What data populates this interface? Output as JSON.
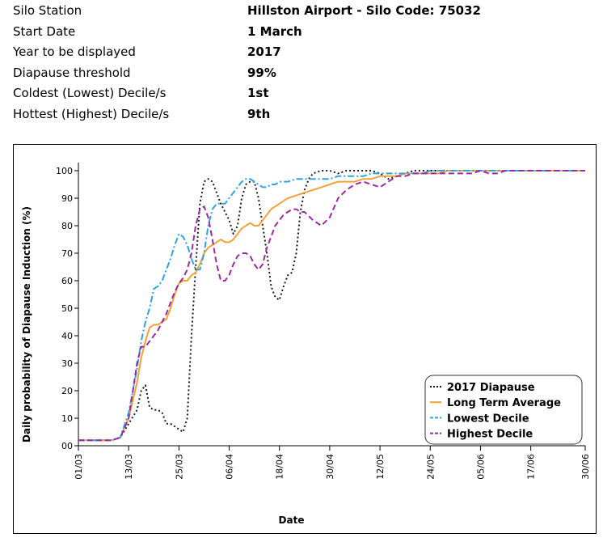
{
  "info": [
    {
      "label": "Silo Station",
      "value": "Hillston Airport - Silo Code: 75032"
    },
    {
      "label": "Start Date",
      "value": "1 March"
    },
    {
      "label": "Year to be displayed",
      "value": "2017"
    },
    {
      "label": "Diapause threshold",
      "value": "99%"
    },
    {
      "label": "Coldest (Lowest) Decile/s",
      "value": "1st"
    },
    {
      "label": "Hottest (Highest) Decile/s",
      "value": "9th"
    }
  ],
  "chart_data": {
    "type": "line",
    "xlabel": "Date",
    "ylabel": "Daily probability of Diapause Induction (%)",
    "x_tick_labels": [
      "01/03",
      "13/03",
      "25/03",
      "06/04",
      "18/04",
      "30/04",
      "12/05",
      "24/05",
      "05/06",
      "17/06",
      "30/06"
    ],
    "x_tick_days": [
      0,
      12,
      24,
      36,
      48,
      60,
      72,
      84,
      96,
      108,
      121
    ],
    "xlim": [
      0,
      121
    ],
    "ylim": [
      0,
      100
    ],
    "y_ticks": [
      0,
      10,
      20,
      30,
      40,
      50,
      60,
      70,
      80,
      90,
      100
    ],
    "y_tick_labels": [
      "00",
      "10",
      "20",
      "30",
      "40",
      "50",
      "60",
      "70",
      "80",
      "90",
      "100"
    ],
    "grid": false,
    "legend_position": "bottom-right",
    "series": [
      {
        "name": "2017 Diapause",
        "color": "#1a1a1a",
        "style": "dotted",
        "x": [
          0,
          8,
          10,
          12,
          14,
          15,
          16,
          17,
          18,
          19,
          20,
          21,
          22,
          24,
          25,
          26,
          27,
          28,
          29,
          30,
          31,
          32,
          34,
          36,
          37,
          38,
          39,
          40,
          41,
          42,
          43,
          44,
          45,
          46,
          47,
          48,
          49,
          50,
          51,
          52,
          53,
          54,
          55,
          56,
          58,
          60,
          62,
          64,
          66,
          68,
          70,
          72,
          74,
          76,
          78,
          80,
          82,
          84,
          86,
          88,
          90,
          92,
          94,
          96,
          98,
          100,
          102,
          104,
          106,
          108,
          110,
          112,
          114,
          116,
          118,
          121
        ],
        "y": [
          2,
          2,
          3,
          8,
          13,
          20,
          22,
          14,
          13,
          13,
          12,
          8,
          8,
          6,
          5,
          10,
          40,
          65,
          88,
          96,
          97,
          96,
          88,
          82,
          77,
          80,
          90,
          95,
          96,
          96,
          90,
          80,
          70,
          58,
          54,
          53,
          58,
          62,
          63,
          70,
          85,
          93,
          97,
          99,
          100,
          100,
          99,
          100,
          100,
          100,
          100,
          99,
          97,
          98,
          99,
          100,
          100,
          100,
          100,
          100,
          100,
          100,
          100,
          100,
          100,
          100,
          100,
          100,
          100,
          100,
          100,
          100,
          100,
          100,
          100,
          100
        ]
      },
      {
        "name": "Long Term Average",
        "color": "#f4a13a",
        "style": "solid",
        "x": [
          0,
          8,
          10,
          12,
          14,
          15,
          16,
          17,
          18,
          19,
          20,
          21,
          22,
          23,
          24,
          25,
          26,
          27,
          28,
          29,
          30,
          31,
          32,
          33,
          34,
          35,
          36,
          37,
          38,
          39,
          40,
          41,
          42,
          43,
          44,
          45,
          46,
          47,
          48,
          50,
          52,
          54,
          56,
          58,
          60,
          62,
          64,
          66,
          68,
          70,
          72,
          74,
          76,
          78,
          80,
          82,
          84,
          86,
          88,
          90,
          92,
          94,
          96,
          98,
          100,
          102,
          104,
          106,
          108,
          110,
          112,
          114,
          116,
          118,
          121
        ],
        "y": [
          2,
          2,
          3,
          10,
          23,
          32,
          38,
          43,
          44,
          44,
          45,
          46,
          50,
          55,
          59,
          60,
          60,
          62,
          63,
          66,
          70,
          72,
          73,
          74,
          75,
          74,
          74,
          75,
          77,
          79,
          80,
          81,
          80,
          80,
          82,
          84,
          86,
          87,
          88,
          90,
          91,
          92,
          93,
          94,
          95,
          96,
          96,
          96,
          97,
          97,
          98,
          98,
          98,
          99,
          99,
          99,
          99,
          99,
          100,
          100,
          100,
          100,
          100,
          100,
          100,
          100,
          100,
          100,
          100,
          100,
          100,
          100,
          100,
          100,
          100
        ]
      },
      {
        "name": "Lowest Decile",
        "color": "#2ea3e0",
        "style": "dashdot",
        "x": [
          0,
          8,
          10,
          12,
          13,
          14,
          15,
          16,
          17,
          18,
          19,
          20,
          21,
          22,
          23,
          24,
          25,
          26,
          27,
          28,
          29,
          30,
          31,
          32,
          33,
          34,
          35,
          36,
          37,
          38,
          39,
          40,
          41,
          42,
          43,
          44,
          45,
          46,
          47,
          48,
          50,
          52,
          54,
          56,
          58,
          60,
          62,
          64,
          66,
          68,
          70,
          72,
          74,
          76,
          78,
          80,
          82,
          84,
          86,
          88,
          90,
          92,
          94,
          96,
          98,
          100,
          102,
          104,
          106,
          108,
          110,
          112,
          114,
          116,
          118,
          121
        ],
        "y": [
          2,
          2,
          3,
          12,
          20,
          28,
          38,
          45,
          50,
          57,
          58,
          60,
          64,
          68,
          73,
          77,
          76,
          73,
          68,
          64,
          64,
          70,
          80,
          86,
          88,
          88,
          88,
          90,
          92,
          94,
          96,
          97,
          97,
          96,
          95,
          94,
          94,
          95,
          95,
          96,
          96,
          97,
          97,
          97,
          97,
          97,
          98,
          98,
          98,
          98,
          99,
          99,
          99,
          99,
          99,
          99,
          99,
          100,
          100,
          100,
          100,
          100,
          100,
          100,
          100,
          100,
          100,
          100,
          100,
          100,
          100,
          100,
          100,
          100,
          100,
          100
        ]
      },
      {
        "name": "Highest Decile",
        "color": "#9a2aa4",
        "style": "dashed",
        "x": [
          0,
          8,
          10,
          12,
          13,
          14,
          15,
          16,
          17,
          18,
          19,
          20,
          21,
          22,
          23,
          24,
          25,
          26,
          27,
          28,
          29,
          30,
          31,
          32,
          33,
          34,
          35,
          36,
          37,
          38,
          39,
          40,
          41,
          42,
          43,
          44,
          45,
          46,
          47,
          48,
          49,
          50,
          51,
          52,
          53,
          54,
          56,
          58,
          60,
          62,
          64,
          66,
          68,
          70,
          72,
          74,
          76,
          78,
          80,
          82,
          84,
          86,
          88,
          90,
          92,
          94,
          96,
          98,
          100,
          102,
          104,
          106,
          108,
          110,
          112,
          114,
          116,
          118,
          121
        ],
        "y": [
          2,
          2,
          3,
          10,
          20,
          30,
          36,
          36,
          38,
          40,
          42,
          45,
          48,
          52,
          56,
          59,
          61,
          64,
          70,
          80,
          86,
          87,
          83,
          75,
          66,
          60,
          60,
          62,
          66,
          69,
          70,
          70,
          69,
          66,
          64,
          66,
          72,
          76,
          80,
          82,
          84,
          85,
          86,
          86,
          85,
          85,
          82,
          80,
          83,
          90,
          93,
          95,
          96,
          95,
          94,
          96,
          98,
          98,
          99,
          99,
          99,
          99,
          99,
          99,
          99,
          99,
          100,
          99,
          99,
          100,
          100,
          100,
          100,
          100,
          100,
          100,
          100,
          100,
          100
        ]
      }
    ]
  }
}
